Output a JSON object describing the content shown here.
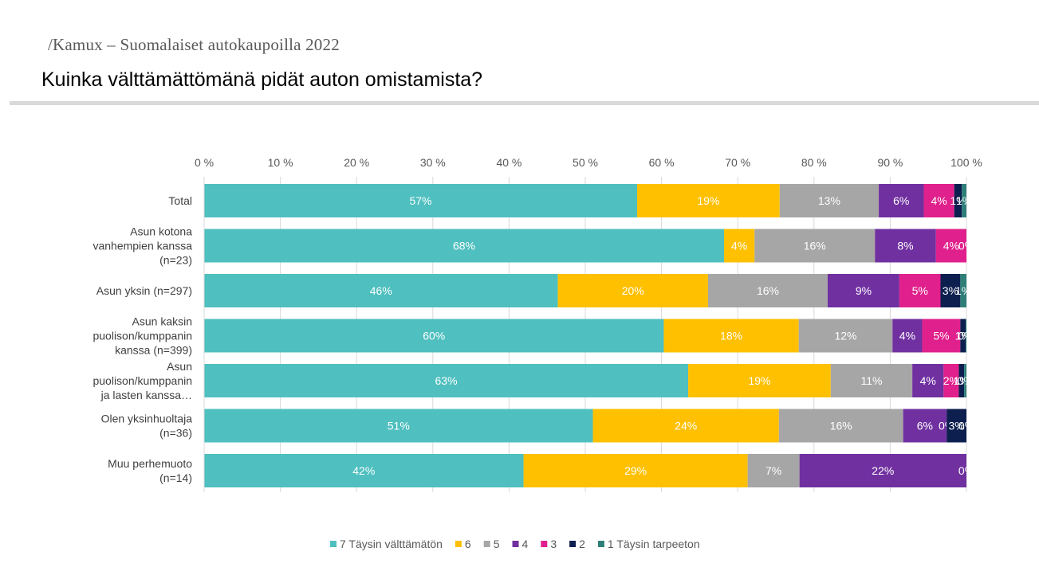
{
  "header": {
    "subtitle": "/Kamux – Suomalaiset autokaupoilla 2022",
    "title": "Kuinka välttämättömänä pidät auton omistamista?"
  },
  "chart_data": {
    "type": "bar",
    "orientation": "horizontal",
    "stacked": true,
    "normalized": true,
    "xlim": [
      0,
      100
    ],
    "x_ticks": [
      "0 %",
      "10 %",
      "20 %",
      "30 %",
      "40 %",
      "50 %",
      "60 %",
      "70 %",
      "80 %",
      "90 %",
      "100 %"
    ],
    "categories": [
      [
        "Total"
      ],
      [
        "Asun kotona",
        "vanhempien kanssa",
        "(n=23)"
      ],
      [
        "Asun yksin (n=297)"
      ],
      [
        "Asun kaksin",
        "puolison/kumppanin",
        "kanssa (n=399)"
      ],
      [
        "Asun",
        "puolison/kumppanin",
        "ja lasten kanssa…"
      ],
      [
        "Olen yksinhuoltaja",
        "(n=36)"
      ],
      [
        "Muu perhemuoto",
        "(n=14)"
      ]
    ],
    "series": [
      {
        "name": "7 Täysin välttämätön",
        "color": "#4fbfbf",
        "values": [
          56.8,
          68.2,
          46.4,
          60.3,
          63.5,
          51.0,
          41.9
        ],
        "labels": [
          "57%",
          "68%",
          "46%",
          "60%",
          "63%",
          "51%",
          "42%"
        ]
      },
      {
        "name": "6",
        "color": "#ffc000",
        "values": [
          18.7,
          4.0,
          19.7,
          17.7,
          18.7,
          24.4,
          29.4
        ],
        "labels": [
          "19%",
          "4%",
          "20%",
          "18%",
          "19%",
          "24%",
          "29%"
        ]
      },
      {
        "name": "5",
        "color": "#a6a6a6",
        "values": [
          13.0,
          15.8,
          15.7,
          12.3,
          10.7,
          16.3,
          6.8
        ],
        "labels": [
          "13%",
          "16%",
          "16%",
          "12%",
          "11%",
          "16%",
          "7%"
        ]
      },
      {
        "name": "4",
        "color": "#7030a0",
        "values": [
          5.9,
          8.0,
          9.4,
          3.9,
          4.1,
          5.7,
          21.9
        ],
        "labels": [
          "6%",
          "8%",
          "9%",
          "4%",
          "4%",
          "6%",
          "22%"
        ]
      },
      {
        "name": "3",
        "color": "#e0208c",
        "values": [
          4.0,
          4.0,
          5.4,
          5.0,
          2.0,
          0.0,
          0.0
        ],
        "labels": [
          "4%",
          "4%",
          "5%",
          "5%",
          "2%",
          "0%",
          "0%"
        ]
      },
      {
        "name": "2",
        "color": "#0d1f4f",
        "values": [
          1.0,
          0.0,
          2.6,
          0.7,
          0.7,
          2.6,
          0.0
        ],
        "labels": [
          "1%",
          "0%",
          "3%",
          "1%",
          "1%",
          "3%",
          ""
        ]
      },
      {
        "name": "1 Täysin tarpeeton",
        "color": "#2e7f78",
        "values": [
          0.6,
          0.0,
          0.8,
          0.1,
          0.3,
          0.0,
          0.0
        ],
        "labels": [
          "1%",
          "",
          "1%",
          "0%",
          "0%",
          "0%",
          ""
        ]
      }
    ],
    "legend_position": "bottom",
    "grid": true
  }
}
